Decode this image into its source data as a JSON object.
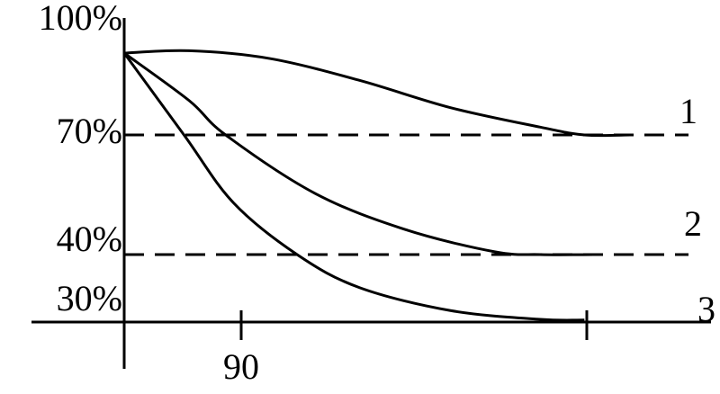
{
  "chart_data": {
    "type": "line",
    "xlim": [
      0,
      450
    ],
    "xticks": [
      90
    ],
    "ylim": [
      30,
      100
    ],
    "yticks": [
      {
        "value": 100,
        "label": "100%"
      },
      {
        "value": 70,
        "label": "70%"
      },
      {
        "value": 40,
        "label": "40%"
      },
      {
        "value": 30,
        "label": "30%"
      }
    ],
    "reference_lines": [
      70,
      40
    ],
    "series": [
      {
        "name": "1",
        "color": "#000000",
        "x": [
          0,
          50,
          112,
          181,
          251,
          320,
          354,
          389
        ],
        "values": [
          91,
          91.6,
          89.6,
          84,
          77,
          72,
          70,
          70
        ]
      },
      {
        "name": "2",
        "color": "#000000",
        "x": [
          0,
          50,
          78,
          147,
          216,
          285,
          320,
          361
        ],
        "values": [
          91,
          78.8,
          70,
          55.3,
          46.3,
          40.7,
          40,
          40
        ]
      },
      {
        "name": "3",
        "color": "#000000",
        "x": [
          0,
          46,
          84,
          133,
          181,
          251,
          320,
          354
        ],
        "values": [
          91,
          70,
          53,
          40,
          35.1,
          31.7,
          30.4,
          30.3
        ]
      }
    ]
  }
}
